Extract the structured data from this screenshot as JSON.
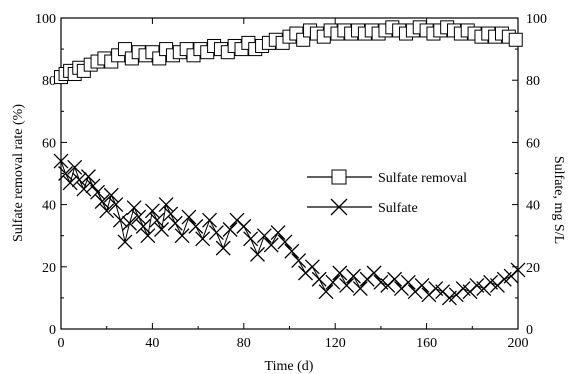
{
  "chart_data": {
    "type": "line",
    "xlabel": "Time (d)",
    "ylabel_left": "Sulfate removal rate (%)",
    "ylabel_right": "Sulfate, mg S/L",
    "xlim": [
      0,
      200
    ],
    "ylim_left": [
      0,
      100
    ],
    "ylim_right": [
      0,
      100
    ],
    "x_ticks": [
      "0",
      "40",
      "80",
      "120",
      "160",
      "200"
    ],
    "y_ticks_left": [
      "0",
      "20",
      "40",
      "60",
      "80",
      "100"
    ],
    "y_ticks_right": [
      "0",
      "20",
      "40",
      "60",
      "80",
      "100"
    ],
    "legend_position": "center-right",
    "grid": false,
    "series": [
      {
        "name": "Sulfate removal",
        "marker": "square",
        "axis": "left",
        "x": [
          0,
          2,
          4,
          6,
          8,
          10,
          13,
          16,
          19,
          22,
          25,
          28,
          31,
          34,
          37,
          40,
          43,
          46,
          49,
          52,
          55,
          58,
          61,
          64,
          67,
          70,
          73,
          76,
          79,
          82,
          85,
          88,
          91,
          94,
          97,
          100,
          103,
          106,
          109,
          112,
          115,
          118,
          121,
          124,
          127,
          130,
          133,
          136,
          139,
          142,
          145,
          148,
          151,
          154,
          157,
          160,
          163,
          166,
          169,
          172,
          175,
          178,
          181,
          184,
          187,
          190,
          193,
          196,
          199
        ],
        "values": [
          81,
          82,
          83,
          82,
          84,
          83,
          85,
          86,
          87,
          86,
          88,
          90,
          87,
          89,
          88,
          89,
          87,
          90,
          88,
          89,
          90,
          88,
          90,
          89,
          91,
          90,
          89,
          91,
          90,
          92,
          90,
          91,
          92,
          93,
          92,
          94,
          95,
          93,
          96,
          95,
          94,
          96,
          95,
          96,
          95,
          96,
          95,
          96,
          95,
          96,
          97,
          96,
          95,
          96,
          97,
          96,
          95,
          96,
          97,
          96,
          95,
          96,
          95,
          94,
          95,
          94,
          95,
          94,
          93
        ]
      },
      {
        "name": "Sulfate",
        "marker": "x",
        "axis": "right",
        "x": [
          0,
          2,
          4,
          6,
          8,
          10,
          12,
          14,
          16,
          18,
          20,
          22,
          24,
          26,
          28,
          30,
          32,
          34,
          36,
          38,
          40,
          42,
          44,
          46,
          48,
          50,
          53,
          56,
          59,
          62,
          65,
          68,
          71,
          74,
          77,
          80,
          83,
          86,
          89,
          92,
          95,
          98,
          101,
          104,
          107,
          110,
          113,
          116,
          119,
          122,
          125,
          128,
          131,
          134,
          137,
          140,
          143,
          146,
          149,
          152,
          155,
          158,
          161,
          164,
          167,
          170,
          173,
          176,
          179,
          182,
          185,
          188,
          191,
          194,
          197,
          200
        ],
        "values": [
          54,
          50,
          47,
          52,
          48,
          45,
          49,
          46,
          44,
          41,
          38,
          43,
          40,
          35,
          28,
          34,
          39,
          36,
          33,
          30,
          38,
          35,
          32,
          40,
          37,
          34,
          30,
          36,
          33,
          29,
          35,
          31,
          26,
          32,
          35,
          33,
          29,
          24,
          30,
          27,
          31,
          28,
          25,
          22,
          18,
          20,
          16,
          12,
          15,
          18,
          14,
          17,
          13,
          16,
          18,
          15,
          14,
          16,
          13,
          15,
          12,
          14,
          11,
          13,
          12,
          10,
          11,
          13,
          12,
          14,
          13,
          15,
          14,
          16,
          17,
          19
        ]
      }
    ]
  }
}
